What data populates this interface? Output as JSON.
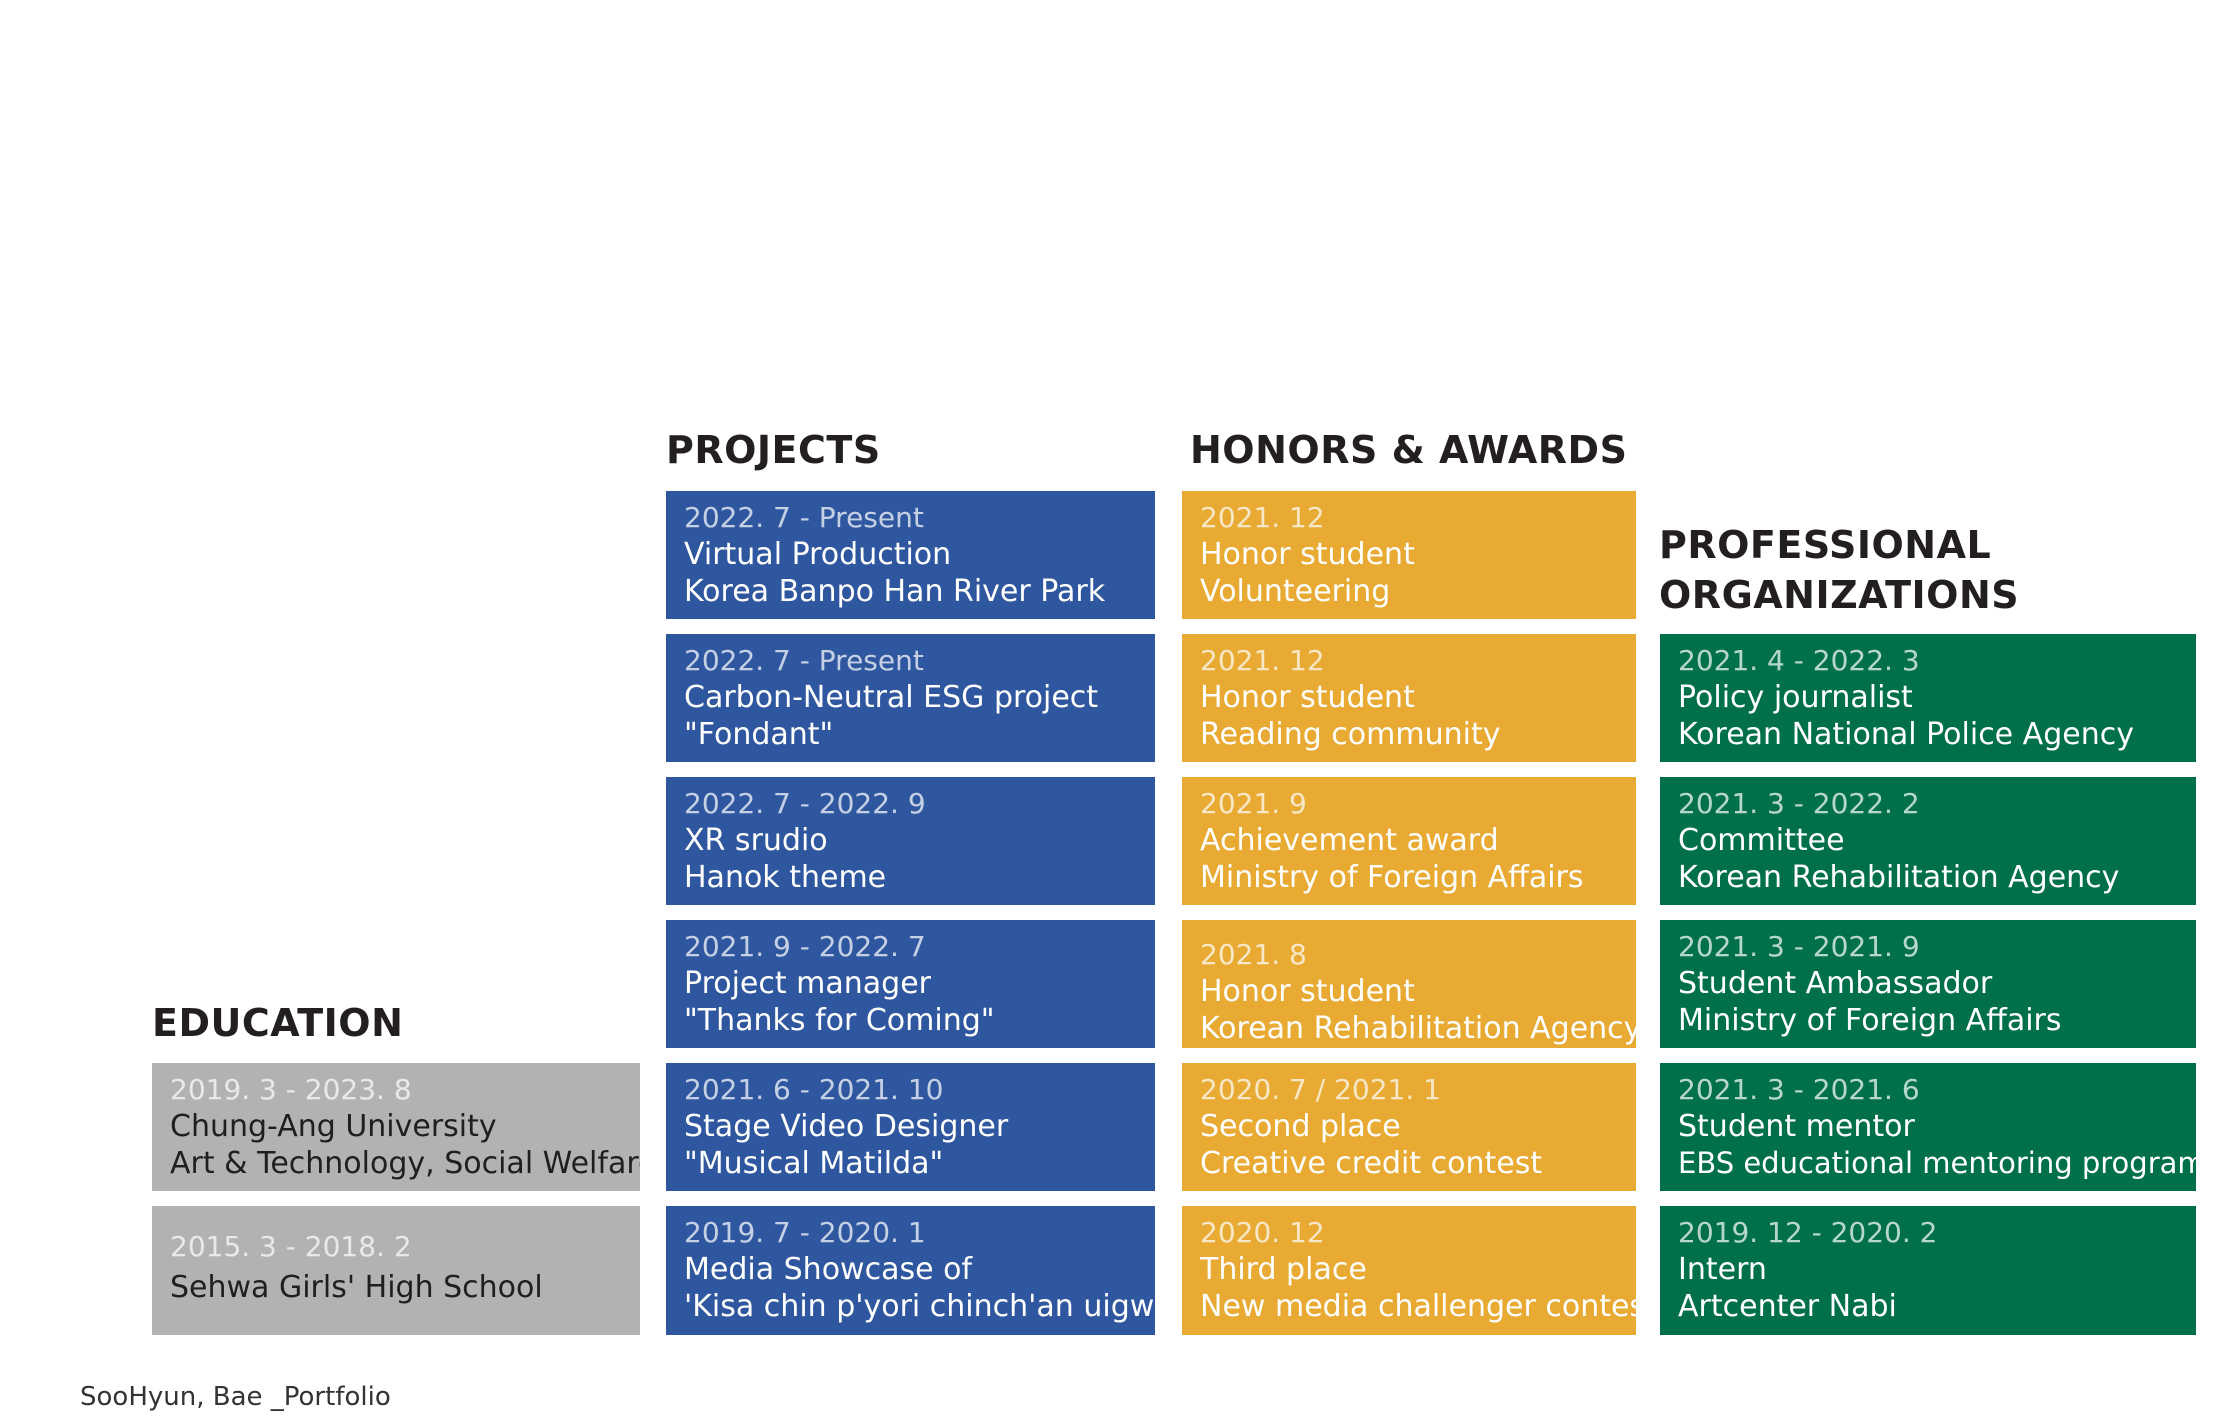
{
  "colors": {
    "education": "#b1b3b3",
    "projects": "#2f579f",
    "honors": "#e8aa32",
    "organizations": "#00704a",
    "heading": "#231f20"
  },
  "headings": {
    "education": "EDUCATION",
    "projects": "PROJECTS",
    "honors": "HONORS & AWARDS",
    "organizations_line1": "PROFESSIONAL",
    "organizations_line2": "ORGANIZATIONS"
  },
  "education": [
    {
      "date": "2019. 3 - 2023. 8",
      "line1": "Chung-Ang University",
      "line2": "Art & Technology, Social Welfare"
    },
    {
      "date": "2015. 3 - 2018. 2",
      "line1": "Sehwa Girls' High School"
    }
  ],
  "projects": [
    {
      "date": "2022. 7 - Present",
      "line1": "Virtual Production",
      "line2": "Korea Banpo Han River Park"
    },
    {
      "date": "2022. 7 - Present",
      "line1": "Carbon-Neutral ESG project",
      "line2": "\"Fondant\""
    },
    {
      "date": "2022. 7 - 2022. 9",
      "line1": "XR srudio",
      "line2": "Hanok theme"
    },
    {
      "date": "2021. 9 - 2022. 7",
      "line1": "Project manager",
      "line2": "\"Thanks for Coming\""
    },
    {
      "date": "2021. 6 - 2021. 10",
      "line1": "Stage Video Designer",
      "line2": "\"Musical Matilda\""
    },
    {
      "date": "2019. 7 - 2020. 1",
      "line1": "Media Showcase of",
      "line2": "'Kisa chin p'yori chinch'an uigwe'"
    }
  ],
  "honors": [
    {
      "date": "2021. 12",
      "line1": "Honor student",
      "line2": "Volunteering"
    },
    {
      "date": "2021. 12",
      "line1": "Honor student",
      "line2": "Reading community"
    },
    {
      "date": "2021. 9",
      "line1": "Achievement award",
      "line2": "Ministry of Foreign Affairs"
    },
    {
      "date": "2021. 8",
      "line1": "Honor student",
      "line2": "Korean Rehabilitation Agency"
    },
    {
      "date": "2020. 7 / 2021. 1",
      "line1": "Second place",
      "line2": "Creative credit contest"
    },
    {
      "date": "2020. 12",
      "line1": "Third place",
      "line2": "New media challenger contest"
    }
  ],
  "organizations": [
    {
      "date": "2021. 4 - 2022. 3",
      "line1": "Policy journalist",
      "line2": "Korean National Police Agency"
    },
    {
      "date": "2021. 3 - 2022. 2",
      "line1": "Committee",
      "line2": "Korean Rehabilitation Agency"
    },
    {
      "date": "2021. 3 - 2021. 9",
      "line1": "Student Ambassador",
      "line2": "Ministry of Foreign Affairs"
    },
    {
      "date": "2021. 3 - 2021. 6",
      "line1": "Student mentor",
      "line2": "EBS educational mentoring program"
    },
    {
      "date": "2019. 12 - 2020. 2",
      "line1": "Intern",
      "line2": "Artcenter Nabi"
    }
  ],
  "footer": "SooHyun, Bae _Portfolio"
}
